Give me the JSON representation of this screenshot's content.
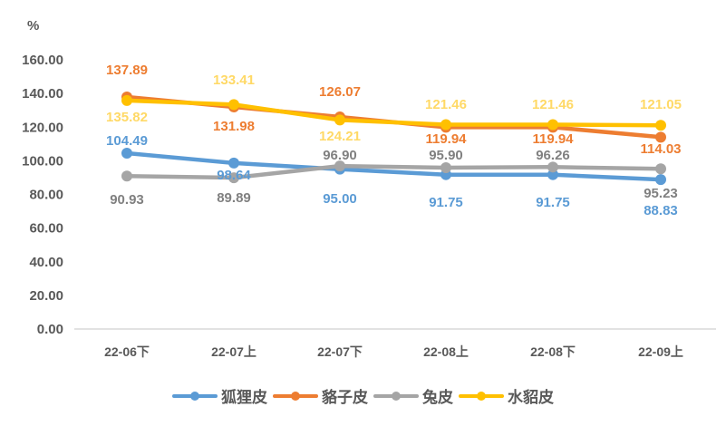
{
  "chart_data": {
    "type": "line",
    "title": "",
    "unit_label": "%",
    "xlabel": "",
    "ylabel": "%",
    "ylim": [
      0,
      160
    ],
    "y_ticks": [
      "0.00",
      "20.00",
      "40.00",
      "60.00",
      "80.00",
      "100.00",
      "120.00",
      "140.00",
      "160.00"
    ],
    "grid": false,
    "legend_position": "bottom",
    "categories": [
      "22-06下",
      "22-07上",
      "22-07下",
      "22-08上",
      "22-08下",
      "22-09上"
    ],
    "series": [
      {
        "name": "狐狸皮",
        "color": "#5B9BD5",
        "values": [
          104.49,
          98.64,
          95.0,
          91.75,
          91.75,
          88.83
        ]
      },
      {
        "name": "貉子皮",
        "color": "#ED7D31",
        "values": [
          137.89,
          131.98,
          126.07,
          119.94,
          119.94,
          114.03
        ]
      },
      {
        "name": "兔皮",
        "color": "#A5A5A5",
        "values": [
          90.93,
          89.89,
          96.9,
          95.9,
          96.26,
          95.23
        ]
      },
      {
        "name": "水貂皮",
        "color": "#FFC000",
        "values": [
          135.82,
          133.41,
          124.21,
          121.46,
          121.46,
          121.05
        ]
      }
    ]
  },
  "legend": {
    "items": [
      {
        "label": "狐狸皮",
        "color": "#5B9BD5"
      },
      {
        "label": "貉子皮",
        "color": "#ED7D31"
      },
      {
        "label": "兔皮",
        "color": "#A5A5A5"
      },
      {
        "label": "水貂皮",
        "color": "#FFC000"
      }
    ]
  }
}
